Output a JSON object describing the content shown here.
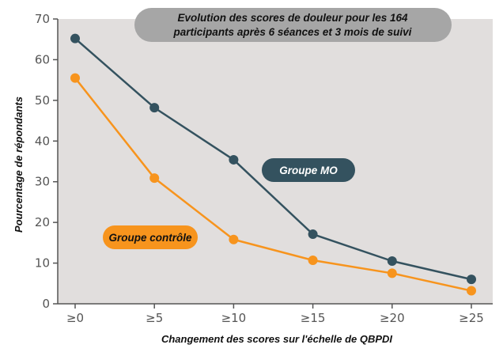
{
  "chart_data": {
    "type": "line",
    "title_lines": [
      "Evolution des scores de douleur pour les 164",
      "participants après 6 séances et 3 mois de suivi"
    ],
    "xlabel": "Changement des scores sur l'échelle de QBPDI",
    "ylabel": "Pourcentage de répondants",
    "categories": [
      "≥0",
      "≥5",
      "≥10",
      "≥15",
      "≥20",
      "≥25"
    ],
    "ylim": [
      0,
      70
    ],
    "yticks": [
      0,
      10,
      20,
      30,
      40,
      50,
      60,
      70
    ],
    "grid": false,
    "series": [
      {
        "name": "Groupe MO",
        "color": "#34525f",
        "values": [
          65.2,
          48.2,
          35.4,
          17.1,
          10.5,
          6.0
        ]
      },
      {
        "name": "Groupe contrôle",
        "color": "#f7941d",
        "values": [
          55.5,
          30.9,
          15.8,
          10.7,
          7.5,
          3.2
        ]
      }
    ],
    "colors": {
      "plot_background": "#e1dedd",
      "title_box": "#a6a6a6",
      "axis": "#555555"
    }
  }
}
